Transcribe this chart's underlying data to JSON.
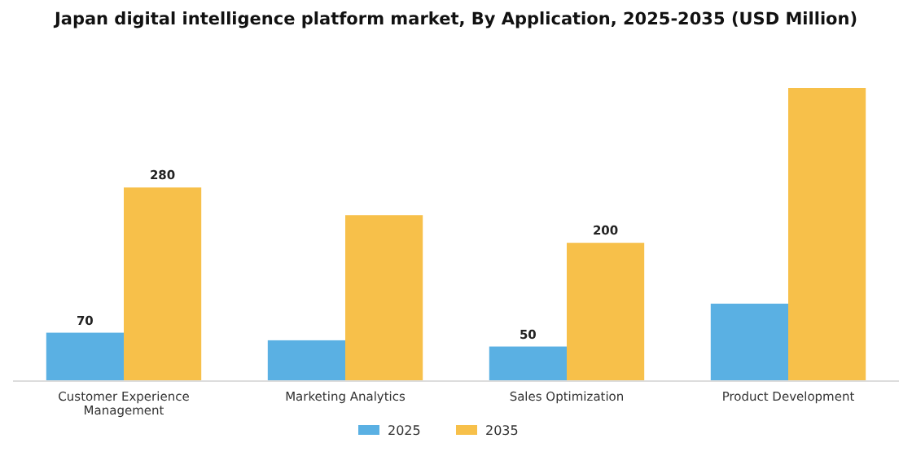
{
  "chart_data": {
    "type": "bar",
    "title": "Japan digital intelligence platform market, By Application, 2025-2035 (USD Million)",
    "categories": [
      "Customer Experience Management",
      "Marketing Analytics",
      "Sales Optimization",
      "Product Development"
    ],
    "series": [
      {
        "name": "2025",
        "color": "#5ab0e3",
        "values": [
          70,
          59,
          50,
          112
        ],
        "value_labels": [
          "70",
          null,
          "50",
          null
        ]
      },
      {
        "name": "2035",
        "color": "#f7c04a",
        "values": [
          280,
          240,
          200,
          424
        ],
        "value_labels": [
          "280",
          null,
          "200",
          null
        ]
      }
    ],
    "legend": "bottom",
    "grid": false
  }
}
